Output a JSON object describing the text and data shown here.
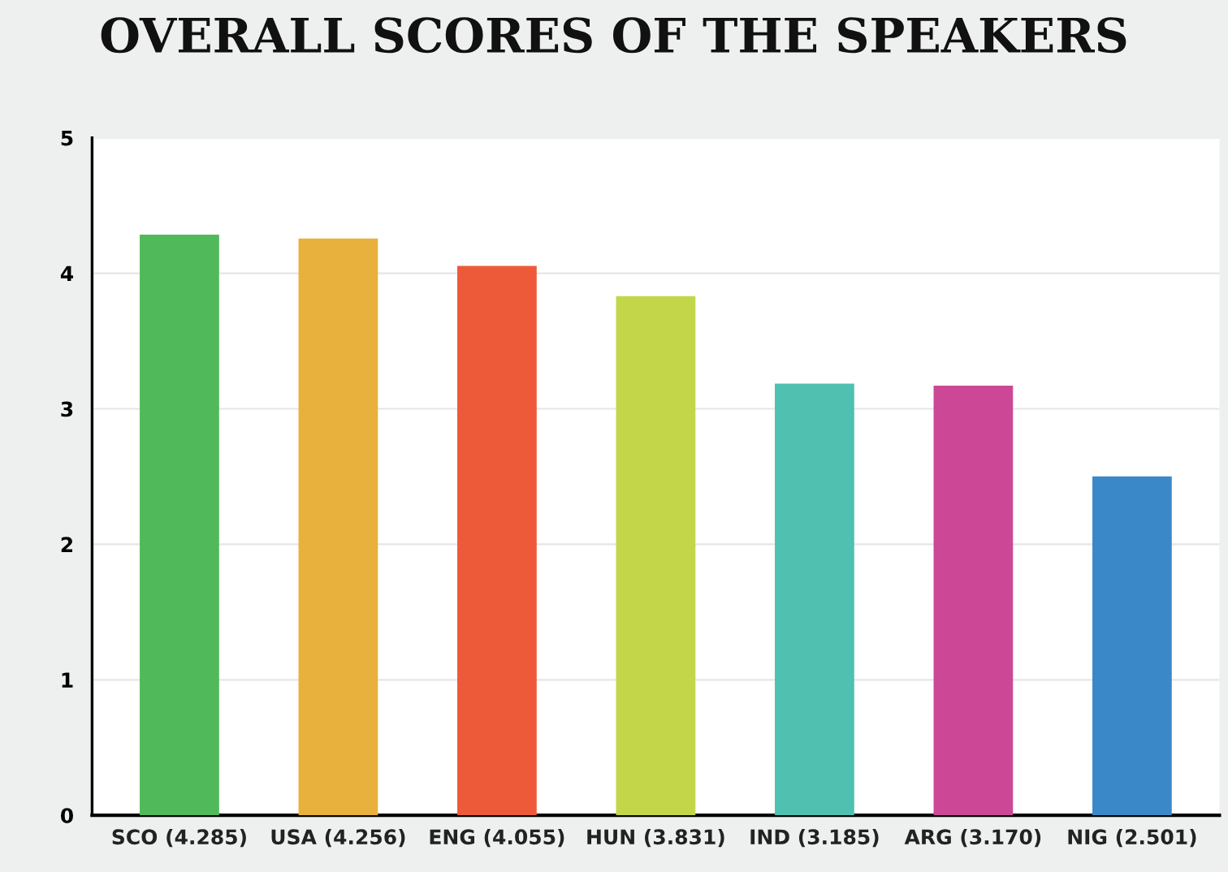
{
  "chart_data": {
    "type": "bar",
    "title": "OVERALL SCORES OF THE SPEAKERS",
    "categories": [
      "SCO (4.285)",
      "USA (4.256)",
      "ENG (4.055)",
      "HUN (3.831)",
      "IND (3.185)",
      "ARG (3.170)",
      "NIG (2.501)"
    ],
    "values": [
      4.285,
      4.256,
      4.055,
      3.831,
      3.185,
      3.17,
      2.501
    ],
    "colors": [
      "#50ba5a",
      "#e8b03c",
      "#ec5a3a",
      "#c3d64a",
      "#50c0b0",
      "#cc4897",
      "#3a88c8"
    ],
    "ylim": [
      0,
      5
    ],
    "yticks": [
      0,
      1,
      2,
      3,
      4,
      5
    ],
    "grid": "y"
  }
}
